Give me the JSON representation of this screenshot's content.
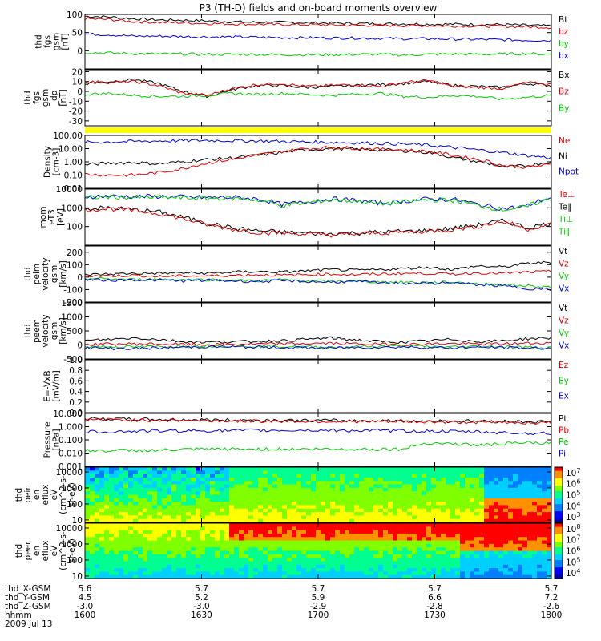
{
  "title": "P3 (TH-D) fields and on-board moments overview",
  "colors": {
    "black": "#000000",
    "red": "#e00000",
    "green": "#00cc00",
    "blue": "#0000dd",
    "yellow": "#ffff00"
  },
  "chart_data": [
    {
      "id": "p1",
      "type": "line",
      "ylabel": [
        "thd",
        "fgs",
        "gsm",
        "[nT]"
      ],
      "ylim": [
        -50,
        100
      ],
      "yticks": [
        -50,
        0,
        50,
        100
      ],
      "yticklabels": [
        "",
        "0",
        "50",
        "100"
      ],
      "legend": [
        {
          "label": "Bt",
          "color": "black"
        },
        {
          "label": "bz",
          "color": "red"
        },
        {
          "label": "by",
          "color": "green"
        },
        {
          "label": "bx",
          "color": "blue"
        }
      ],
      "series": [
        {
          "name": "Bt",
          "color": "black",
          "values": [
            95,
            93,
            88,
            85,
            84,
            82,
            80,
            78,
            78,
            77,
            76,
            75,
            74,
            74,
            73,
            73,
            72,
            72,
            70,
            68
          ]
        },
        {
          "name": "bz",
          "color": "red",
          "values": [
            88,
            86,
            80,
            78,
            77,
            75,
            74,
            73,
            72,
            72,
            71,
            70,
            70,
            69,
            69,
            68,
            68,
            67,
            66,
            64
          ]
        },
        {
          "name": "bx",
          "color": "blue",
          "values": [
            46,
            44,
            40,
            40,
            39,
            38,
            38,
            37,
            36,
            36,
            35,
            35,
            34,
            33,
            33,
            32,
            31,
            30,
            29,
            28
          ]
        },
        {
          "name": "by",
          "color": "green",
          "values": [
            -5,
            -6,
            -8,
            -9,
            -9,
            -10,
            -10,
            -10,
            -11,
            -11,
            -11,
            -10,
            -10,
            -12,
            -10,
            -9,
            -10,
            -9,
            -8,
            -10
          ]
        }
      ]
    },
    {
      "id": "p2",
      "type": "line",
      "ylabel": [
        "thd",
        "fgs",
        "gsm",
        "_dp",
        "[nT]"
      ],
      "ylim": [
        -35,
        22
      ],
      "yticks": [
        -30,
        -20,
        -10,
        0,
        10,
        20
      ],
      "yticklabels": [
        "-30",
        "-20",
        "-10",
        "0",
        "10",
        "20"
      ],
      "legend": [
        {
          "label": "Bx",
          "color": "black"
        },
        {
          "label": "Bz",
          "color": "red"
        },
        {
          "label": "By",
          "color": "green"
        }
      ],
      "series": [
        {
          "name": "Bx",
          "color": "black",
          "values": [
            8,
            10,
            12,
            8,
            0,
            -5,
            2,
            6,
            6,
            4,
            5,
            6,
            7,
            8,
            10,
            6,
            5,
            4,
            8,
            6
          ]
        },
        {
          "name": "Bz",
          "color": "red",
          "values": [
            10,
            9,
            10,
            6,
            -2,
            -4,
            3,
            7,
            8,
            5,
            6,
            7,
            5,
            9,
            11,
            5,
            4,
            3,
            9,
            7
          ]
        },
        {
          "name": "By",
          "color": "green",
          "values": [
            -3,
            -2,
            -4,
            -5,
            -5,
            -4,
            -2,
            -3,
            -2,
            -3,
            -4,
            -3,
            -2,
            -5,
            -6,
            -4,
            -5,
            -8,
            -6,
            -4
          ]
        }
      ]
    },
    {
      "id": "p3",
      "type": "line",
      "yscale": "log",
      "ylabel": [
        "Density",
        "[cm-3]"
      ],
      "ylim": [
        0.01,
        100
      ],
      "yticks": [
        0.01,
        0.1,
        1,
        10,
        100
      ],
      "yticklabels": [
        "0.01",
        "0.10",
        "1.00",
        "10.00",
        "100.00"
      ],
      "legend": [
        {
          "label": "Ne",
          "color": "red"
        },
        {
          "label": "Ni",
          "color": "black"
        },
        {
          "label": "Npot",
          "color": "blue"
        }
      ],
      "series": [
        {
          "name": "Npot",
          "color": "blue",
          "values": [
            30,
            32,
            35,
            38,
            40,
            42,
            40,
            38,
            35,
            32,
            30,
            28,
            25,
            22,
            18,
            12,
            8,
            5,
            3,
            2
          ]
        },
        {
          "name": "Ni",
          "color": "black",
          "values": [
            0.6,
            0.8,
            0.9,
            0.7,
            1,
            1.5,
            2,
            3,
            5,
            8,
            10,
            9,
            8,
            7,
            5,
            2,
            1,
            0.4,
            0.5,
            1
          ]
        },
        {
          "name": "Ne",
          "color": "red",
          "values": [
            0.12,
            0.1,
            0.1,
            0.15,
            0.3,
            0.8,
            1.5,
            3,
            6,
            10,
            12,
            11,
            9,
            8,
            6,
            3,
            1.5,
            0.5,
            0.4,
            0.6
          ]
        }
      ]
    },
    {
      "id": "p4",
      "type": "line",
      "yscale": "log",
      "ylabel": [
        "mom",
        "eT3",
        "[eV]"
      ],
      "ylim": [
        10,
        10000
      ],
      "yticks": [
        10,
        100,
        1000,
        10000
      ],
      "yticklabels": [
        "",
        "100",
        "1000",
        "10000"
      ],
      "legend": [
        {
          "label": "Te⊥",
          "color": "red"
        },
        {
          "label": "Te∥",
          "color": "black"
        },
        {
          "label": "Ti⊥",
          "color": "green"
        },
        {
          "label": "Ti∥",
          "color": "green"
        }
      ],
      "series": [
        {
          "name": "Ti⊥",
          "color": "blue",
          "values": [
            4000,
            4200,
            4000,
            4100,
            3800,
            3500,
            3600,
            3000,
            1500,
            2000,
            3000,
            2500,
            1800,
            2200,
            3000,
            2800,
            1500,
            900,
            1200,
            3500
          ]
        },
        {
          "name": "Ti∥",
          "color": "green",
          "values": [
            3500,
            3800,
            3600,
            3700,
            3400,
            3200,
            3300,
            2700,
            1300,
            1800,
            2700,
            2300,
            1600,
            2000,
            2700,
            2500,
            1300,
            800,
            1100,
            3000
          ]
        },
        {
          "name": "Te∥",
          "color": "black",
          "values": [
            900,
            1000,
            800,
            600,
            300,
            150,
            80,
            60,
            50,
            45,
            40,
            45,
            50,
            55,
            60,
            80,
            120,
            200,
            80,
            150
          ]
        },
        {
          "name": "Te⊥",
          "color": "red",
          "values": [
            800,
            900,
            700,
            500,
            250,
            120,
            70,
            50,
            45,
            40,
            35,
            40,
            45,
            50,
            55,
            70,
            100,
            180,
            70,
            130
          ]
        }
      ]
    },
    {
      "id": "p5",
      "type": "line",
      "ylabel": [
        "thd",
        "peim",
        "velocity",
        "gsm",
        "[km/s]"
      ],
      "ylim": [
        -200,
        250
      ],
      "yticks": [
        -200,
        -100,
        0,
        100,
        200
      ],
      "yticklabels": [
        "-200",
        "-100",
        "0",
        "100",
        "200"
      ],
      "legend": [
        {
          "label": "Vt",
          "color": "black"
        },
        {
          "label": "Vz",
          "color": "red"
        },
        {
          "label": "Vy",
          "color": "green"
        },
        {
          "label": "Vx",
          "color": "blue"
        }
      ],
      "series": [
        {
          "name": "Vt",
          "color": "black",
          "values": [
            20,
            25,
            30,
            30,
            35,
            30,
            40,
            45,
            40,
            50,
            60,
            55,
            60,
            70,
            80,
            60,
            90,
            80,
            110,
            120
          ]
        },
        {
          "name": "Vz",
          "color": "red",
          "values": [
            10,
            10,
            15,
            5,
            10,
            10,
            15,
            20,
            15,
            20,
            25,
            20,
            25,
            30,
            30,
            25,
            35,
            30,
            40,
            45
          ]
        },
        {
          "name": "Vy",
          "color": "green",
          "values": [
            -10,
            -15,
            -20,
            -15,
            -20,
            -20,
            -25,
            -30,
            -20,
            -30,
            -35,
            -30,
            -40,
            -40,
            -45,
            -40,
            -55,
            -60,
            -70,
            -80
          ]
        },
        {
          "name": "Vx",
          "color": "blue",
          "values": [
            -20,
            -25,
            -20,
            -25,
            -30,
            -25,
            -30,
            -35,
            -30,
            -35,
            -40,
            -35,
            -45,
            -50,
            -50,
            -45,
            -60,
            -70,
            -90,
            -100
          ]
        }
      ]
    },
    {
      "id": "p6",
      "type": "line",
      "ylabel": [
        "thd",
        "peem",
        "velocity",
        "gsm",
        "[km/s]"
      ],
      "ylim": [
        -500,
        1500
      ],
      "yticks": [
        -500,
        0,
        500,
        1000,
        1500
      ],
      "yticklabels": [
        "-500",
        "0",
        "500",
        "1000",
        "1500"
      ],
      "legend": [
        {
          "label": "Vt",
          "color": "black"
        },
        {
          "label": "Vz",
          "color": "red"
        },
        {
          "label": "Vy",
          "color": "green"
        },
        {
          "label": "Vx",
          "color": "blue"
        }
      ],
      "series": [
        {
          "name": "Vt",
          "color": "black",
          "values": [
            150,
            200,
            250,
            200,
            120,
            100,
            110,
            130,
            150,
            200,
            250,
            180,
            120,
            100,
            150,
            200,
            120,
            150,
            220,
            250
          ]
        },
        {
          "name": "Vz",
          "color": "red",
          "values": [
            20,
            30,
            40,
            30,
            20,
            10,
            20,
            30,
            40,
            50,
            60,
            40,
            30,
            20,
            40,
            50,
            30,
            40,
            60,
            70
          ]
        },
        {
          "name": "Vy",
          "color": "green",
          "values": [
            -50,
            -60,
            -70,
            -60,
            -40,
            -30,
            -40,
            -50,
            -60,
            -70,
            -80,
            -60,
            -50,
            -40,
            -60,
            -70,
            -50,
            -60,
            -80,
            -90
          ]
        },
        {
          "name": "Vx",
          "color": "blue",
          "values": [
            -100,
            -120,
            -130,
            -110,
            -80,
            -60,
            -70,
            -80,
            -90,
            -100,
            -110,
            -90,
            -80,
            -70,
            -90,
            -100,
            -80,
            -90,
            -110,
            -120
          ]
        }
      ]
    },
    {
      "id": "p7",
      "type": "line",
      "ylabel": [
        "E=-VxB",
        "[mV/m]"
      ],
      "ylim": [
        0,
        1
      ],
      "yticks": [
        0,
        0.2,
        0.4,
        0.6,
        0.8,
        1
      ],
      "yticklabels": [
        "0.0",
        "0.2",
        "0.4",
        "0.6",
        "0.8",
        "1.0"
      ],
      "legend": [
        {
          "label": "Ez",
          "color": "red"
        },
        {
          "label": "Ey",
          "color": "green"
        },
        {
          "label": "Ex",
          "color": "blue"
        }
      ],
      "series": []
    },
    {
      "id": "p8",
      "type": "line",
      "yscale": "log",
      "ylabel": [
        "Pressure",
        "[nPa]"
      ],
      "ylim": [
        0.001,
        10
      ],
      "yticks": [
        0.001,
        0.01,
        0.1,
        1,
        10
      ],
      "yticklabels": [
        "0.001",
        "0.010",
        "0.100",
        "1.000",
        "10.000"
      ],
      "legend": [
        {
          "label": "Pt",
          "color": "black"
        },
        {
          "label": "Pb",
          "color": "red"
        },
        {
          "label": "Pe",
          "color": "green"
        },
        {
          "label": "Pi",
          "color": "blue"
        }
      ],
      "series": [
        {
          "name": "Pt",
          "color": "black",
          "values": [
            4,
            3.8,
            3.6,
            3.4,
            3.3,
            3.2,
            3.1,
            3,
            3,
            2.9,
            2.9,
            2.8,
            2.8,
            2.7,
            2.7,
            2.6,
            2.6,
            2.5,
            2.4,
            2.3
          ]
        },
        {
          "name": "Pb",
          "color": "red",
          "values": [
            3.5,
            3.3,
            3.1,
            3,
            2.9,
            2.8,
            2.7,
            2.6,
            2.6,
            2.5,
            2.5,
            2.4,
            2.4,
            2.3,
            2.3,
            2.2,
            2.2,
            2.1,
            2,
            1.9
          ]
        },
        {
          "name": "Pi",
          "color": "blue",
          "values": [
            0.4,
            0.42,
            0.45,
            0.47,
            0.48,
            0.5,
            0.5,
            0.52,
            0.52,
            0.53,
            0.52,
            0.5,
            0.5,
            0.48,
            0.45,
            0.42,
            0.4,
            0.35,
            0.32,
            0.3
          ]
        },
        {
          "name": "Pe",
          "color": "green",
          "values": [
            0.015,
            0.015,
            0.016,
            0.016,
            0.018,
            0.02,
            0.02,
            0.02,
            0.02,
            0.02,
            0.02,
            0.02,
            0.02,
            0.02,
            0.06,
            0.05,
            0.04,
            0.05,
            0.06,
            0.05
          ]
        }
      ]
    },
    {
      "id": "p9",
      "type": "heatmap",
      "ylabel": [
        "thd",
        "peir",
        "en",
        "eflux",
        "eV",
        "(cm^2-s-",
        "sr-eV)"
      ],
      "yscale": "log",
      "ylim": [
        7,
        20000
      ],
      "yticks": [
        10,
        100,
        1000,
        10000
      ],
      "yticklabels": [
        "10",
        "100",
        "1000",
        "10000"
      ],
      "cbar": {
        "ticks": [
          "10^3",
          "10^4",
          "10^5",
          "10^6",
          "10^7"
        ]
      }
    },
    {
      "id": "p10",
      "type": "heatmap",
      "ylabel": [
        "thd",
        "peer",
        "en",
        "eflux",
        "eV",
        "(cm^2-s-",
        "sr-eV)"
      ],
      "yscale": "log",
      "ylim": [
        7,
        20000
      ],
      "yticks": [
        10,
        100,
        1000,
        10000
      ],
      "yticklabels": [
        "10",
        "100",
        "1000",
        "10000"
      ],
      "cbar": {
        "ticks": [
          "10^4",
          "10^5",
          "10^6",
          "10^7",
          "10^8"
        ]
      }
    }
  ],
  "xaxis": {
    "rows": [
      {
        "label": "thd_X-GSM",
        "values": [
          "5.6",
          "5.7",
          "5.7",
          "5.7",
          "5.7"
        ]
      },
      {
        "label": "thd_Y-GSM",
        "values": [
          "4.5",
          "5.2",
          "5.9",
          "6.6",
          "7.2"
        ]
      },
      {
        "label": "thd_Z-GSM",
        "values": [
          "-3.0",
          "-3.0",
          "-2.9",
          "-2.8",
          "-2.6"
        ]
      },
      {
        "label": "hhmm",
        "values": [
          "1600",
          "1630",
          "1700",
          "1730",
          "1800"
        ]
      }
    ],
    "date": "2009 Jul 13"
  }
}
